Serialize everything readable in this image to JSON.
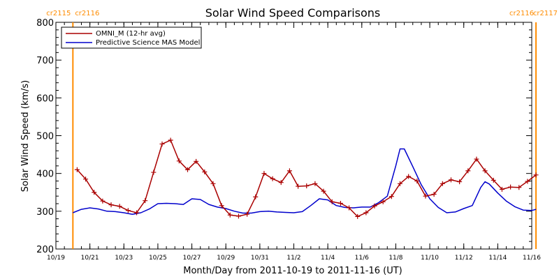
{
  "chart_data": {
    "type": "line",
    "title": "Solar Wind Speed Comparisons",
    "xlabel": "Month/Day from 2011-10-19 to 2011-11-16 (UT)",
    "ylabel": "Solar Wind Speed (km/s)",
    "xlim": [
      "2011-10-19",
      "2011-11-16"
    ],
    "ylim": [
      200,
      800
    ],
    "y_ticks": [
      "200",
      "300",
      "400",
      "500",
      "600",
      "700",
      "800"
    ],
    "x_ticks": [
      {
        "date": "2011-10-19",
        "label": "10/19"
      },
      {
        "date": "2011-10-21",
        "label": "10/21"
      },
      {
        "date": "2011-10-23",
        "label": "10/23"
      },
      {
        "date": "2011-10-25",
        "label": "10/25"
      },
      {
        "date": "2011-10-27",
        "label": "10/27"
      },
      {
        "date": "2011-10-29",
        "label": "10/29"
      },
      {
        "date": "2011-10-31",
        "label": "10/31"
      },
      {
        "date": "2011-11-02",
        "label": "11/2"
      },
      {
        "date": "2011-11-04",
        "label": "11/4"
      },
      {
        "date": "2011-11-06",
        "label": "11/6"
      },
      {
        "date": "2011-11-08",
        "label": "11/8"
      },
      {
        "date": "2011-11-10",
        "label": "11/10"
      },
      {
        "date": "2011-11-12",
        "label": "11/12"
      },
      {
        "date": "2011-11-14",
        "label": "11/14"
      },
      {
        "date": "2011-11-16",
        "label": "11/16"
      }
    ],
    "legend_position": "top-left",
    "grid": false,
    "rotation_markers": [
      {
        "date": "2011-10-20 00:00",
        "label_left": "cr2115",
        "label_right": "cr2116",
        "color": "#ff8c00"
      },
      {
        "date": "2011-11-16 06:00",
        "label_left": "cr2116",
        "label_right": "cr2117",
        "color": "#ff8c00"
      }
    ],
    "series": [
      {
        "name": "OMNI_M (12-hr avg)",
        "color": "#aa0000",
        "marker": "plus",
        "points": [
          [
            "2011-10-20 06:00",
            410
          ],
          [
            "2011-10-20 18:00",
            385
          ],
          [
            "2011-10-21 06:00",
            350
          ],
          [
            "2011-10-21 18:00",
            327
          ],
          [
            "2011-10-22 06:00",
            317
          ],
          [
            "2011-10-22 18:00",
            313
          ],
          [
            "2011-10-23 06:00",
            302
          ],
          [
            "2011-10-23 18:00",
            296
          ],
          [
            "2011-10-24 06:00",
            328
          ],
          [
            "2011-10-24 18:00",
            403
          ],
          [
            "2011-10-25 06:00",
            478
          ],
          [
            "2011-10-25 18:00",
            488
          ],
          [
            "2011-10-26 06:00",
            433
          ],
          [
            "2011-10-26 18:00",
            410
          ],
          [
            "2011-10-27 06:00",
            432
          ],
          [
            "2011-10-27 18:00",
            404
          ],
          [
            "2011-10-28 06:00",
            373
          ],
          [
            "2011-10-28 18:00",
            315
          ],
          [
            "2011-10-29 06:00",
            290
          ],
          [
            "2011-10-29 18:00",
            287
          ],
          [
            "2011-10-30 06:00",
            292
          ],
          [
            "2011-10-30 18:00",
            338
          ],
          [
            "2011-10-31 06:00",
            400
          ],
          [
            "2011-10-31 18:00",
            386
          ],
          [
            "2011-11-01 06:00",
            376
          ],
          [
            "2011-11-01 18:00",
            407
          ],
          [
            "2011-11-02 06:00",
            366
          ],
          [
            "2011-11-02 18:00",
            367
          ],
          [
            "2011-11-03 06:00",
            373
          ],
          [
            "2011-11-03 18:00",
            353
          ],
          [
            "2011-11-04 06:00",
            325
          ],
          [
            "2011-11-04 18:00",
            321
          ],
          [
            "2011-11-05 06:00",
            309
          ],
          [
            "2011-11-05 18:00",
            286
          ],
          [
            "2011-11-06 06:00",
            296
          ],
          [
            "2011-11-06 18:00",
            314
          ],
          [
            "2011-11-07 06:00",
            325
          ],
          [
            "2011-11-07 18:00",
            339
          ],
          [
            "2011-11-08 06:00",
            373
          ],
          [
            "2011-11-08 18:00",
            392
          ],
          [
            "2011-11-09 06:00",
            380
          ],
          [
            "2011-11-09 18:00",
            340
          ],
          [
            "2011-11-10 06:00",
            345
          ],
          [
            "2011-11-10 18:00",
            373
          ],
          [
            "2011-11-11 06:00",
            383
          ],
          [
            "2011-11-11 18:00",
            378
          ],
          [
            "2011-11-12 06:00",
            407
          ],
          [
            "2011-11-12 18:00",
            438
          ],
          [
            "2011-11-13 06:00",
            407
          ],
          [
            "2011-11-13 18:00",
            382
          ],
          [
            "2011-11-14 06:00",
            358
          ],
          [
            "2011-11-14 18:00",
            364
          ],
          [
            "2011-11-15 06:00",
            363
          ],
          [
            "2011-11-15 18:00",
            379
          ],
          [
            "2011-11-16 06:00",
            396
          ]
        ]
      },
      {
        "name": "Predictive Science MAS Model",
        "color": "#0000cc",
        "marker": "none",
        "points": [
          [
            "2011-10-20 00:00",
            296
          ],
          [
            "2011-10-20 12:00",
            305
          ],
          [
            "2011-10-21 00:00",
            309
          ],
          [
            "2011-10-21 12:00",
            306
          ],
          [
            "2011-10-22 00:00",
            300
          ],
          [
            "2011-10-22 12:00",
            299
          ],
          [
            "2011-10-23 00:00",
            296
          ],
          [
            "2011-10-23 12:00",
            292
          ],
          [
            "2011-10-24 00:00",
            296
          ],
          [
            "2011-10-24 12:00",
            306
          ],
          [
            "2011-10-25 00:00",
            320
          ],
          [
            "2011-10-25 12:00",
            321
          ],
          [
            "2011-10-26 00:00",
            320
          ],
          [
            "2011-10-26 12:00",
            318
          ],
          [
            "2011-10-27 00:00",
            333
          ],
          [
            "2011-10-27 12:00",
            331
          ],
          [
            "2011-10-28 00:00",
            318
          ],
          [
            "2011-10-28 12:00",
            311
          ],
          [
            "2011-10-29 00:00",
            307
          ],
          [
            "2011-10-29 12:00",
            300
          ],
          [
            "2011-10-30 00:00",
            295
          ],
          [
            "2011-10-30 12:00",
            295
          ],
          [
            "2011-10-31 00:00",
            299
          ],
          [
            "2011-10-31 12:00",
            300
          ],
          [
            "2011-11-01 00:00",
            298
          ],
          [
            "2011-11-01 12:00",
            297
          ],
          [
            "2011-11-02 00:00",
            296
          ],
          [
            "2011-11-02 12:00",
            299
          ],
          [
            "2011-11-03 00:00",
            315
          ],
          [
            "2011-11-03 12:00",
            333
          ],
          [
            "2011-11-04 00:00",
            330
          ],
          [
            "2011-11-04 12:00",
            315
          ],
          [
            "2011-11-05 00:00",
            310
          ],
          [
            "2011-11-05 12:00",
            309
          ],
          [
            "2011-11-06 00:00",
            311
          ],
          [
            "2011-11-06 12:00",
            311
          ],
          [
            "2011-11-07 00:00",
            323
          ],
          [
            "2011-11-07 12:00",
            340
          ],
          [
            "2011-11-08 00:00",
            420
          ],
          [
            "2011-11-08 06:00",
            465
          ],
          [
            "2011-11-08 12:00",
            465
          ],
          [
            "2011-11-09 00:00",
            418
          ],
          [
            "2011-11-09 12:00",
            370
          ],
          [
            "2011-11-10 00:00",
            333
          ],
          [
            "2011-11-10 12:00",
            310
          ],
          [
            "2011-11-11 00:00",
            296
          ],
          [
            "2011-11-11 12:00",
            298
          ],
          [
            "2011-11-12 00:00",
            307
          ],
          [
            "2011-11-12 12:00",
            315
          ],
          [
            "2011-11-13 00:00",
            363
          ],
          [
            "2011-11-13 06:00",
            378
          ],
          [
            "2011-11-13 12:00",
            372
          ],
          [
            "2011-11-14 00:00",
            348
          ],
          [
            "2011-11-14 12:00",
            327
          ],
          [
            "2011-11-15 00:00",
            312
          ],
          [
            "2011-11-15 12:00",
            303
          ],
          [
            "2011-11-16 00:00",
            302
          ],
          [
            "2011-11-16 06:00",
            305
          ]
        ]
      }
    ]
  }
}
